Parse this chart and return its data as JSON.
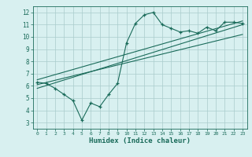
{
  "main_line_x": [
    0,
    1,
    2,
    3,
    4,
    5,
    6,
    7,
    8,
    9,
    10,
    11,
    12,
    13,
    14,
    15,
    16,
    17,
    18,
    19,
    20,
    21,
    22,
    23
  ],
  "main_line_y": [
    6.3,
    6.2,
    5.8,
    5.3,
    4.8,
    3.2,
    4.6,
    4.3,
    5.3,
    6.2,
    9.5,
    11.1,
    11.8,
    12.0,
    11.0,
    10.7,
    10.4,
    10.5,
    10.3,
    10.8,
    10.5,
    11.2,
    11.2,
    11.1
  ],
  "upper_line_x": [
    0,
    23
  ],
  "upper_line_y": [
    6.5,
    11.3
  ],
  "lower_line_x": [
    0,
    23
  ],
  "lower_line_y": [
    5.8,
    11.0
  ],
  "mid_line_x": [
    0,
    23
  ],
  "mid_line_y": [
    6.1,
    10.2
  ],
  "line_color": "#1a6b5a",
  "bg_color": "#d8f0f0",
  "grid_color": "#aacccc",
  "xlabel": "Humidex (Indice chaleur)",
  "xlim": [
    -0.5,
    23.5
  ],
  "ylim": [
    2.5,
    12.5
  ],
  "yticks": [
    3,
    4,
    5,
    6,
    7,
    8,
    9,
    10,
    11,
    12
  ],
  "xticks": [
    0,
    1,
    2,
    3,
    4,
    5,
    6,
    7,
    8,
    9,
    10,
    11,
    12,
    13,
    14,
    15,
    16,
    17,
    18,
    19,
    20,
    21,
    22,
    23
  ]
}
